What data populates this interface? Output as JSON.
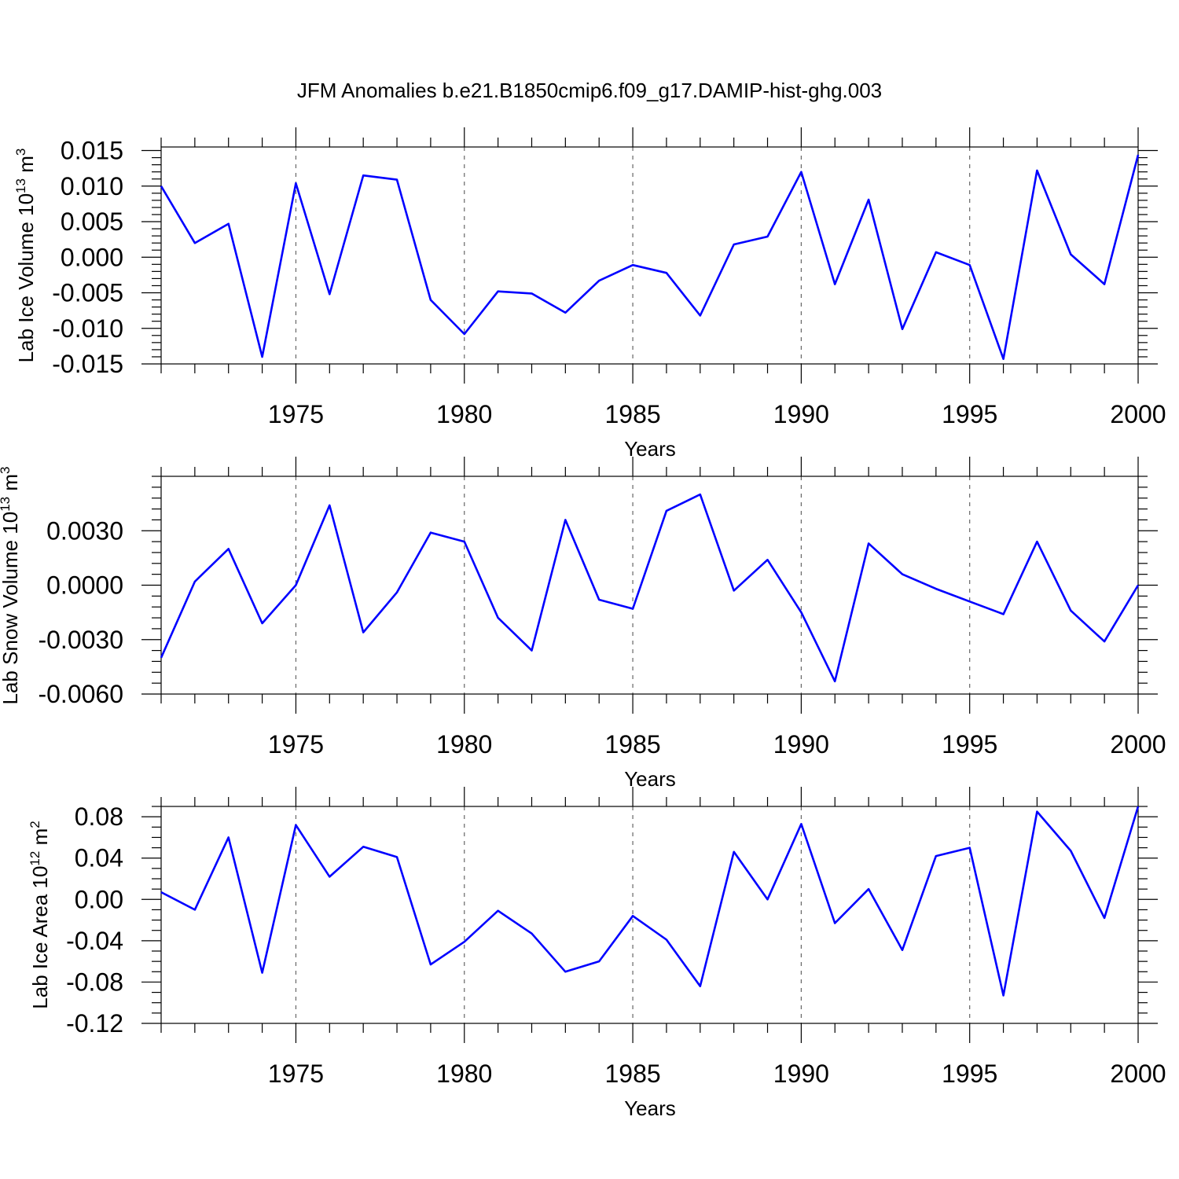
{
  "colors": {
    "series": "#0000FF",
    "axis": "#000000",
    "grid": "#666666"
  },
  "chart_data": [
    {
      "type": "line",
      "title": "JFM Anomalies b.e21.B1850cmip6.f09_g17.DAMIP-hist-ghg.003",
      "xlabel": "Years",
      "ylabel": "Lab Ice Volume 10",
      "ylabel_exp": "13",
      "ylabel_unit": "m",
      "ylabel_unit_exp": "3",
      "xlim": [
        1971,
        2000
      ],
      "ylim": [
        -0.015,
        0.0155
      ],
      "x_ticks": [
        1975,
        1980,
        1985,
        1990,
        1995,
        2000
      ],
      "x_tick_labels": [
        "1975",
        "1980",
        "1985",
        "1990",
        "1995",
        "2000"
      ],
      "y_ticks": [
        -0.015,
        -0.01,
        -0.005,
        0.0,
        0.005,
        0.01,
        0.015
      ],
      "y_tick_labels": [
        "-0.015",
        "-0.010",
        "-0.005",
        "0.000",
        "0.005",
        "0.010",
        "0.015"
      ],
      "y_minor_step": 0.001,
      "grid": "dashed vertical at major x ticks",
      "series": [
        {
          "name": "Lab Ice Volume",
          "x": [
            1971,
            1972,
            1973,
            1974,
            1975,
            1976,
            1977,
            1978,
            1979,
            1980,
            1981,
            1982,
            1983,
            1984,
            1985,
            1986,
            1987,
            1988,
            1989,
            1990,
            1991,
            1992,
            1993,
            1994,
            1995,
            1996,
            1997,
            1998,
            1999,
            2000
          ],
          "values": [
            0.01,
            0.002,
            0.0047,
            -0.014,
            0.0104,
            -0.0052,
            0.0115,
            0.0109,
            -0.006,
            -0.0108,
            -0.0048,
            -0.0051,
            -0.0078,
            -0.0033,
            -0.0011,
            -0.0022,
            -0.0082,
            0.0018,
            0.0029,
            0.012,
            -0.0038,
            0.0081,
            -0.0101,
            0.0007,
            -0.0011,
            -0.0143,
            0.0122,
            0.0004,
            -0.0038,
            0.0144
          ]
        }
      ]
    },
    {
      "type": "line",
      "title": "",
      "xlabel": "Years",
      "ylabel": "Lab Snow Volume 10",
      "ylabel_exp": "13",
      "ylabel_unit": "m",
      "ylabel_unit_exp": "3",
      "xlim": [
        1971,
        2000
      ],
      "ylim": [
        -0.006,
        0.006
      ],
      "x_ticks": [
        1975,
        1980,
        1985,
        1990,
        1995,
        2000
      ],
      "x_tick_labels": [
        "1975",
        "1980",
        "1985",
        "1990",
        "1995",
        "2000"
      ],
      "y_ticks": [
        -0.006,
        -0.003,
        0.0,
        0.003
      ],
      "y_tick_labels": [
        "-0.0060",
        "-0.0030",
        "0.0000",
        "0.0030"
      ],
      "y_minor_step": 0.0006,
      "grid": "dashed vertical at major x ticks",
      "series": [
        {
          "name": "Lab Snow Volume",
          "x": [
            1971,
            1972,
            1973,
            1974,
            1975,
            1976,
            1977,
            1978,
            1979,
            1980,
            1981,
            1982,
            1983,
            1984,
            1985,
            1986,
            1987,
            1988,
            1989,
            1990,
            1991,
            1992,
            1993,
            1994,
            1995,
            1996,
            1997,
            1998,
            1999,
            2000
          ],
          "values": [
            -0.004,
            0.0002,
            0.002,
            -0.0021,
            0.0,
            0.0044,
            -0.0026,
            -0.0004,
            0.0029,
            0.0024,
            -0.0018,
            -0.0036,
            0.0036,
            -0.0008,
            -0.0013,
            0.0041,
            0.005,
            -0.0003,
            0.0014,
            -0.0015,
            -0.0053,
            0.0023,
            0.0006,
            -0.0002,
            -0.0009,
            -0.0016,
            0.0024,
            -0.0014,
            -0.0031,
            0.0
          ]
        }
      ]
    },
    {
      "type": "line",
      "title": "",
      "xlabel": "Years",
      "ylabel": "Lab Ice Area 10",
      "ylabel_exp": "12",
      "ylabel_unit": "m",
      "ylabel_unit_exp": "2",
      "xlim": [
        1971,
        2000
      ],
      "ylim": [
        -0.12,
        0.09
      ],
      "x_ticks": [
        1975,
        1980,
        1985,
        1990,
        1995,
        2000
      ],
      "x_tick_labels": [
        "1975",
        "1980",
        "1985",
        "1990",
        "1995",
        "2000"
      ],
      "y_ticks": [
        -0.12,
        -0.08,
        -0.04,
        0.0,
        0.04,
        0.08
      ],
      "y_tick_labels": [
        "-0.12",
        "-0.08",
        "-0.04",
        "0.00",
        "0.04",
        "0.08"
      ],
      "y_minor_step": 0.01,
      "grid": "dashed vertical at major x ticks",
      "series": [
        {
          "name": "Lab Ice Area",
          "x": [
            1971,
            1972,
            1973,
            1974,
            1975,
            1976,
            1977,
            1978,
            1979,
            1980,
            1981,
            1982,
            1983,
            1984,
            1985,
            1986,
            1987,
            1988,
            1989,
            1990,
            1991,
            1992,
            1993,
            1994,
            1995,
            1996,
            1997,
            1998,
            1999,
            2000
          ],
          "values": [
            0.007,
            -0.01,
            0.06,
            -0.071,
            0.072,
            0.022,
            0.051,
            0.041,
            -0.063,
            -0.041,
            -0.011,
            -0.033,
            -0.07,
            -0.06,
            -0.016,
            -0.039,
            -0.084,
            0.046,
            0.0,
            0.073,
            -0.023,
            0.01,
            -0.049,
            0.042,
            0.05,
            -0.093,
            0.085,
            0.047,
            -0.018,
            0.09
          ]
        }
      ]
    }
  ]
}
